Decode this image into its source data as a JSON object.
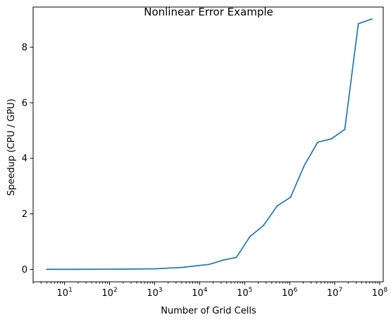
{
  "chart_data": {
    "type": "line",
    "title": "Nonlinear Error Example",
    "xlabel": "Number of Grid Cells",
    "ylabel": "Speedup (CPU / GPU)",
    "xscale": "log",
    "xlim": [
      2,
      120000000
    ],
    "ylim": [
      -0.45,
      9.45
    ],
    "grid": false,
    "colors": {
      "series": "#1f77b4"
    },
    "x_ticks": [
      {
        "base": "10",
        "exp": "1",
        "value": 10
      },
      {
        "base": "10",
        "exp": "2",
        "value": 100
      },
      {
        "base": "10",
        "exp": "3",
        "value": 1000
      },
      {
        "base": "10",
        "exp": "4",
        "value": 10000
      },
      {
        "base": "10",
        "exp": "5",
        "value": 100000
      },
      {
        "base": "10",
        "exp": "6",
        "value": 1000000
      },
      {
        "base": "10",
        "exp": "7",
        "value": 10000000
      },
      {
        "base": "10",
        "exp": "8",
        "value": 100000000
      }
    ],
    "y_ticks": [
      {
        "label": "0",
        "value": 0
      },
      {
        "label": "2",
        "value": 2
      },
      {
        "label": "4",
        "value": 4
      },
      {
        "label": "6",
        "value": 6
      },
      {
        "label": "8",
        "value": 8
      }
    ],
    "series": [
      {
        "x": [
          4,
          16,
          64,
          256,
          1024,
          4096,
          16384,
          32768,
          65536,
          131072,
          262144,
          524288,
          1048576,
          2097152,
          4194304,
          8388608,
          16777216,
          33554432,
          67108864
        ],
        "y": [
          0.0,
          0.0,
          0.005,
          0.01,
          0.02,
          0.07,
          0.18,
          0.33,
          0.43,
          1.18,
          1.58,
          2.28,
          2.6,
          3.73,
          4.58,
          4.7,
          5.04,
          8.85,
          9.02
        ]
      }
    ]
  }
}
